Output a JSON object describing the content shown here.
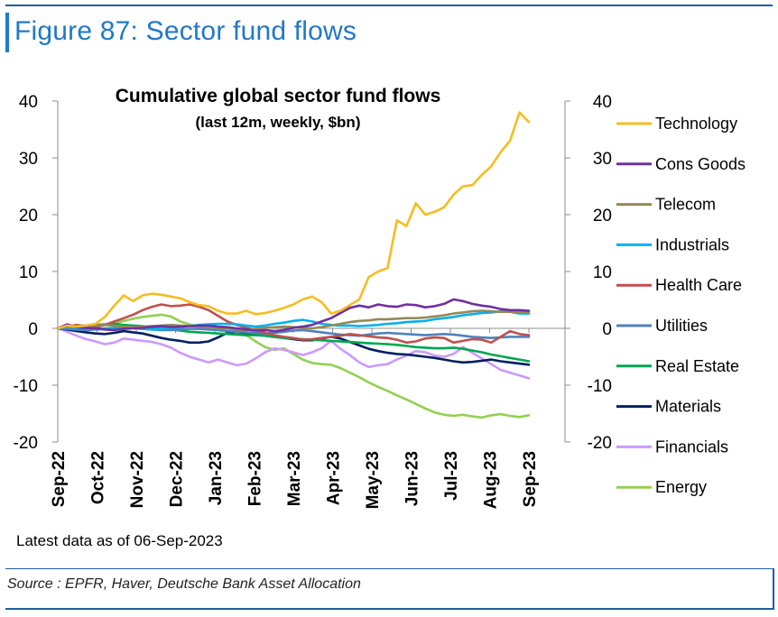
{
  "figure_title": "Figure 87: Sector fund flows",
  "note": "Latest data as of 06-Sep-2023",
  "source": "Source : EPFR, Haver, Deutsche Bank Asset Allocation",
  "chart_data": {
    "type": "line",
    "title": "Cumulative global sector fund flows",
    "subtitle": "(last 12m, weekly, $bn)",
    "x_tick_labels": [
      "Sep-22",
      "Oct-22",
      "Nov-22",
      "Dec-22",
      "Jan-23",
      "Feb-23",
      "Mar-23",
      "Apr-23",
      "May-23",
      "Jun-23",
      "Jul-23",
      "Aug-23",
      "Sep-23"
    ],
    "ylim": [
      -20,
      40
    ],
    "y_ticks": [
      40,
      30,
      20,
      10,
      0,
      -10,
      -20
    ],
    "legend_position": "right",
    "series": [
      {
        "name": "Technology",
        "color": "#f5bd1f",
        "values": [
          0,
          0.5,
          0.3,
          0.5,
          0.8,
          2,
          4,
          5.8,
          4.8,
          5.8,
          6.1,
          5.9,
          5.6,
          5.3,
          4.6,
          4.1,
          3.9,
          3.1,
          2.6,
          2.6,
          3.1,
          2.5,
          2.7,
          3.1,
          3.6,
          4.2,
          5.1,
          5.6,
          4.6,
          2.6,
          3.1,
          4.1,
          5.1,
          9,
          10,
          10.6,
          19,
          18,
          22,
          20,
          20.5,
          21.3,
          23.5,
          25,
          25.2,
          27,
          28.5,
          31,
          33,
          38,
          36.3
        ]
      },
      {
        "name": "Cons Goods",
        "color": "#7030a0",
        "values": [
          0,
          0.7,
          0.2,
          0.1,
          0,
          -0.2,
          -0.3,
          -0.1,
          0,
          0.1,
          0.3,
          0.4,
          0.2,
          0.3,
          0.4,
          0.5,
          0.5,
          0.3,
          0.2,
          0,
          -0.2,
          -0.4,
          -0.3,
          -0.5,
          -0.3,
          0.1,
          0.3,
          0.6,
          1.2,
          1.8,
          2.7,
          3.6,
          4,
          3.7,
          4.2,
          3.9,
          3.8,
          4.2,
          4.1,
          3.7,
          3.9,
          4.3,
          5.1,
          4.8,
          4.3,
          4,
          3.8,
          3.4,
          3.2,
          3.2,
          3.1
        ]
      },
      {
        "name": "Telecom",
        "color": "#948a54",
        "values": [
          0,
          0.3,
          0.2,
          0.4,
          0.5,
          0.6,
          0.5,
          0.3,
          0.2,
          0.3,
          0.4,
          0.5,
          0.6,
          0.5,
          0.4,
          0.3,
          0.2,
          0.1,
          0,
          -0.2,
          -0.3,
          -0.1,
          0.1,
          0.2,
          0.3,
          0.2,
          0.1,
          0,
          0.2,
          0.5,
          0.8,
          1.1,
          1.3,
          1.4,
          1.6,
          1.6,
          1.7,
          1.8,
          1.8,
          1.9,
          2.1,
          2.3,
          2.6,
          2.8,
          3,
          3.1,
          3,
          2.9,
          2.9,
          2.9,
          2.9
        ]
      },
      {
        "name": "Industrials",
        "color": "#00b0f0",
        "values": [
          0,
          0.2,
          0.1,
          0,
          -0.1,
          0,
          0.1,
          0.2,
          0.1,
          -0.1,
          -0.2,
          -0.1,
          0,
          0.2,
          0.4,
          0.6,
          0.7,
          0.8,
          0.8,
          0.7,
          0.5,
          0.3,
          0.5,
          0.8,
          1,
          1.3,
          1.5,
          1.2,
          0.8,
          0.6,
          0.5,
          0.5,
          0.4,
          0.5,
          0.6,
          0.8,
          0.9,
          1.1,
          1.2,
          1.3,
          1.6,
          1.8,
          2,
          2.3,
          2.5,
          2.7,
          2.8,
          3,
          2.9,
          2.6,
          2.6
        ]
      },
      {
        "name": "Health Care",
        "color": "#c0504d",
        "values": [
          0,
          0.3,
          0.6,
          0.4,
          0.2,
          0.6,
          1.2,
          1.8,
          2.4,
          3.2,
          3.8,
          4.2,
          3.9,
          4,
          4.2,
          3.8,
          3.2,
          2.2,
          1.2,
          0.6,
          0.1,
          -0.3,
          -0.8,
          -1.2,
          -1.5,
          -1.7,
          -2,
          -1.9,
          -1.7,
          -1.5,
          -1.3,
          -1,
          -1.2,
          -1.4,
          -1.6,
          -1.7,
          -2,
          -2.5,
          -2.3,
          -1.8,
          -1.6,
          -1.7,
          -2.5,
          -2.2,
          -1.9,
          -2,
          -2.5,
          -1.5,
          -0.5,
          -1,
          -1.2
        ]
      },
      {
        "name": "Utilities",
        "color": "#4f81bd",
        "values": [
          0,
          -0.1,
          -0.2,
          -0.3,
          -0.2,
          -0.1,
          0,
          0.1,
          0,
          -0.1,
          -0.2,
          -0.3,
          -0.3,
          -0.2,
          -0.1,
          -0.1,
          -0.2,
          -0.3,
          -0.5,
          -0.6,
          -0.7,
          -0.8,
          -0.9,
          -0.8,
          -0.6,
          -0.4,
          -0.3,
          -0.5,
          -0.7,
          -0.9,
          -1.1,
          -1.2,
          -1.3,
          -1.1,
          -0.9,
          -0.8,
          -0.9,
          -1,
          -1.1,
          -1.2,
          -1.1,
          -1,
          -1.1,
          -1.3,
          -1.5,
          -1.6,
          -1.7,
          -1.6,
          -1.5,
          -1.5,
          -1.5
        ]
      },
      {
        "name": "Real Estate",
        "color": "#00a651",
        "values": [
          0,
          0.2,
          0.3,
          0.5,
          0.6,
          0.7,
          0.8,
          0.6,
          0.5,
          0.4,
          0.2,
          0,
          -0.2,
          -0.4,
          -0.6,
          -0.7,
          -0.8,
          -0.9,
          -1,
          -1.1,
          -1.2,
          -1.2,
          -1.3,
          -1.5,
          -1.7,
          -1.8,
          -1.9,
          -2,
          -2.1,
          -2.2,
          -2.3,
          -2.4,
          -2.5,
          -2.6,
          -2.7,
          -2.8,
          -2.9,
          -3.1,
          -3.3,
          -3.4,
          -3.5,
          -3.5,
          -3.4,
          -3.6,
          -3.9,
          -4.2,
          -4.6,
          -4.9,
          -5.2,
          -5.5,
          -5.8
        ]
      },
      {
        "name": "Materials",
        "color": "#002060",
        "values": [
          0,
          -0.2,
          -0.5,
          -0.7,
          -0.9,
          -1,
          -0.8,
          -0.5,
          -0.7,
          -0.9,
          -1.3,
          -1.7,
          -2,
          -2.2,
          -2.5,
          -2.5,
          -2.3,
          -1.6,
          -0.8,
          -0.6,
          -0.9,
          -1.1,
          -1.3,
          -1.5,
          -1.7,
          -1.9,
          -2.1,
          -2.1,
          -1.8,
          -1.5,
          -1.8,
          -2.4,
          -3,
          -3.6,
          -4,
          -4.3,
          -4.5,
          -4.6,
          -4.8,
          -5,
          -5.2,
          -5.5,
          -5.8,
          -6,
          -5.9,
          -5.7,
          -5.5,
          -5.8,
          -6,
          -6.2,
          -6.4
        ]
      },
      {
        "name": "Financials",
        "color": "#cc99ff",
        "values": [
          0,
          -0.6,
          -1.3,
          -1.9,
          -2.3,
          -2.8,
          -2.5,
          -1.8,
          -2,
          -2.2,
          -2.4,
          -2.8,
          -3.4,
          -4.3,
          -5,
          -5.5,
          -6,
          -5.5,
          -6,
          -6.5,
          -6.2,
          -5.3,
          -4.2,
          -3.5,
          -3.8,
          -4.2,
          -4.7,
          -4.2,
          -3.5,
          -2.2,
          -3.6,
          -4.7,
          -6,
          -6.8,
          -6.5,
          -6.3,
          -5.5,
          -4.8,
          -4,
          -4.2,
          -4.8,
          -5,
          -4.5,
          -3.3,
          -4.3,
          -5.3,
          -6.3,
          -7.3,
          -7.8,
          -8.3,
          -8.8
        ]
      },
      {
        "name": "Energy",
        "color": "#92d050",
        "values": [
          0,
          0.2,
          0.4,
          0.5,
          0.4,
          0.6,
          0.9,
          1.3,
          1.7,
          2,
          2.2,
          2.4,
          2.1,
          1.2,
          0.7,
          0.3,
          0.1,
          -0.2,
          -0.4,
          -0.6,
          -1.2,
          -2.3,
          -3.3,
          -3.8,
          -3.5,
          -4.5,
          -5.5,
          -6.1,
          -6.3,
          -6.4,
          -7,
          -7.8,
          -8.6,
          -9.5,
          -10.3,
          -11,
          -11.8,
          -12.5,
          -13.3,
          -14.1,
          -14.8,
          -15.2,
          -15.4,
          -15.2,
          -15.5,
          -15.7,
          -15.3,
          -15.1,
          -15.4,
          -15.6,
          -15.3
        ]
      }
    ]
  }
}
